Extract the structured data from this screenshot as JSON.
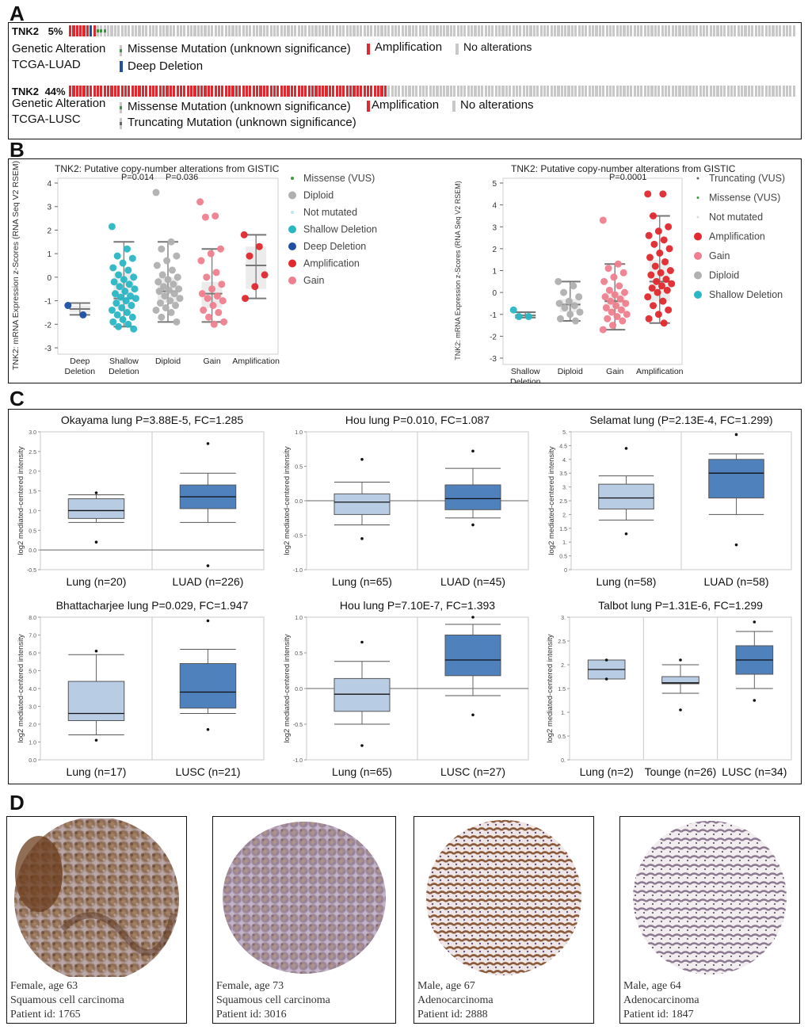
{
  "panels": {
    "a": "A",
    "b": "B",
    "c": "C",
    "d": "D"
  },
  "colors": {
    "amplification": "#e0282e",
    "deep_deletion": "#1f4fa3",
    "missense": "#3a9a3a",
    "truncating": "#666666",
    "no_alteration": "#c8c8c8",
    "box_light": "#b8cce4",
    "box_dark": "#4f81bd",
    "shallow": "#2ab7c4",
    "diploid": "#b0b0b0",
    "gain": "#ef7f8e",
    "deep_del_dot": "#1f4fa3"
  },
  "panel_a": {
    "luad": {
      "gene": "TNK2",
      "pct": "5%",
      "row_label": "Genetic Alteration",
      "study": "TCGA-LUAD",
      "legend": [
        "Missense Mutation (unknown significance)",
        "Amplification",
        "No alterations",
        "Deep Deletion"
      ],
      "altered_fraction": 0.05
    },
    "lusc": {
      "gene": "TNK2",
      "pct": "44%",
      "row_label": "Genetic Alteration",
      "study": "TCGA-LUSC",
      "legend": [
        "Missense Mutation (unknown significance)",
        "Amplification",
        "No alterations",
        "Truncating Mutation (unknown significance)"
      ],
      "altered_fraction": 0.44
    }
  },
  "chart_data": [
    {
      "type": "scatter",
      "panel": "B-left",
      "title": "TNK2: Putative copy-number alterations from GISTIC",
      "ylabel": "TNK2: mRNA Expression z-Scores (RNA Seq V2 RSEM)",
      "categories": [
        "Deep Deletion",
        "Shallow Deletion",
        "Diploid",
        "Gain",
        "Amplification"
      ],
      "ylim": [
        -3,
        4
      ],
      "yticks": [
        -3,
        -2,
        -1,
        0,
        1,
        2,
        3,
        4
      ],
      "pvalues": [
        "P=0.014",
        "P=0.036"
      ],
      "legend": [
        "Missense (VUS)",
        "Diploid",
        "Not mutated",
        "Shallow Deletion",
        "Deep Deletion",
        "Amplification",
        "Gain"
      ],
      "boxes": [
        {
          "q1": -1.5,
          "med": -1.35,
          "q3": -1.2,
          "lo": -1.6,
          "hi": -1.1
        },
        {
          "q1": -1.4,
          "med": -0.9,
          "q3": 0.2,
          "lo": -2.1,
          "hi": 1.5
        },
        {
          "q1": -1.1,
          "med": -0.6,
          "q3": 0.0,
          "lo": -1.9,
          "hi": 1.5
        },
        {
          "q1": -1.3,
          "med": -0.7,
          "q3": -0.2,
          "lo": -1.9,
          "hi": 1.2
        },
        {
          "q1": -0.5,
          "med": 0.5,
          "q3": 1.3,
          "lo": -0.9,
          "hi": 1.8
        }
      ],
      "points": [
        [
          -1.2,
          -1.6
        ],
        [
          2.15,
          1.2,
          0.9,
          0.8,
          0.6,
          0.4,
          0.3,
          0.1,
          0.0,
          -0.1,
          -0.2,
          -0.3,
          -0.4,
          -0.5,
          -0.6,
          -0.7,
          -0.8,
          -0.85,
          -0.9,
          -1.0,
          -1.1,
          -1.2,
          -1.3,
          -1.4,
          -1.5,
          -1.6,
          -1.7,
          -1.8,
          -1.9,
          -2.0,
          -2.1,
          -2.2
        ],
        [
          3.6,
          1.5,
          1.2,
          0.9,
          0.7,
          0.5,
          0.3,
          0.1,
          0.0,
          -0.1,
          -0.2,
          -0.3,
          -0.4,
          -0.5,
          -0.55,
          -0.6,
          -0.7,
          -0.8,
          -0.9,
          -1.0,
          -1.1,
          -1.2,
          -1.3,
          -1.4,
          -1.5,
          -1.7,
          -1.9
        ],
        [
          3.2,
          2.6,
          2.55,
          1.2,
          1.0,
          0.7,
          0.2,
          0.0,
          -0.3,
          -0.5,
          -0.7,
          -0.8,
          -0.9,
          -1.0,
          -1.2,
          -1.4,
          -1.5,
          -1.7,
          -1.9,
          -2.0
        ],
        [
          1.8,
          1.3,
          0.9,
          0.1,
          -0.4,
          -0.9
        ]
      ]
    },
    {
      "type": "scatter",
      "panel": "B-right",
      "title": "TNK2: Putative copy-number alterations from GISTIC",
      "ylabel": "TNK2: mRNA Expression z-Scores (RNA Seq V2 RSEM)",
      "categories": [
        "Shallow Deletion",
        "Diploid",
        "Gain",
        "Amplification"
      ],
      "ylim": [
        -3,
        5
      ],
      "yticks": [
        -3,
        -2,
        -1,
        0,
        1,
        2,
        3,
        4,
        5
      ],
      "pvalues": [
        "P=0.0001"
      ],
      "legend": [
        "Truncating (VUS)",
        "Missense (VUS)",
        "Not mutated",
        "Amplification",
        "Gain",
        "Diploid",
        "Shallow Deletion"
      ],
      "boxes": [
        {
          "q1": -1.15,
          "med": -1.05,
          "q3": -0.95,
          "lo": -1.15,
          "hi": -0.9
        },
        {
          "q1": -0.9,
          "med": -0.55,
          "q3": -0.3,
          "lo": -1.3,
          "hi": 0.5
        },
        {
          "q1": -0.9,
          "med": -0.4,
          "q3": 0.0,
          "lo": -1.7,
          "hi": 1.3
        },
        {
          "q1": -0.4,
          "med": 0.5,
          "q3": 1.5,
          "lo": -1.4,
          "hi": 3.5
        }
      ],
      "points": [
        [
          -0.8,
          -1.1,
          -1.1
        ],
        [
          0.5,
          0.3,
          0.0,
          -0.2,
          -0.4,
          -0.5,
          -0.6,
          -0.7,
          -0.9,
          -1.0,
          -1.2,
          -1.3
        ],
        [
          3.3,
          1.3,
          1.1,
          0.9,
          0.7,
          0.5,
          0.3,
          0.1,
          0.0,
          -0.1,
          -0.2,
          -0.3,
          -0.4,
          -0.5,
          -0.6,
          -0.7,
          -0.8,
          -0.9,
          -1.0,
          -1.1,
          -1.2,
          -1.3,
          -1.5,
          -1.7
        ],
        [
          4.5,
          4.5,
          3.5,
          3.0,
          2.8,
          2.6,
          2.4,
          2.2,
          2.0,
          1.8,
          1.6,
          1.4,
          1.2,
          1.0,
          0.9,
          0.8,
          0.6,
          0.5,
          0.4,
          0.3,
          0.2,
          0.1,
          0.0,
          -0.2,
          -0.4,
          -0.6,
          -0.8,
          -1.0,
          -1.2,
          -1.4
        ]
      ]
    },
    {
      "type": "box",
      "panel": "C-1",
      "title": "Okayama lung P=3.88E-5, FC=1.285",
      "ylabel": "log2 mediated-centered intensity",
      "categories": [
        "Lung (n=20)",
        "LUAD (n=226)"
      ],
      "ylim": [
        -0.5,
        3.0
      ],
      "yticks": [
        "-0.5",
        "0.0",
        "0.5",
        "1.0",
        "1.5",
        "2.0",
        "2.5",
        "3.0"
      ],
      "ref": 0.0,
      "boxes": [
        {
          "q1": 0.8,
          "med": 1.0,
          "q3": 1.3,
          "lo": 0.7,
          "hi": 1.4,
          "out": [
            1.45,
            0.2
          ]
        },
        {
          "q1": 1.05,
          "med": 1.35,
          "q3": 1.65,
          "lo": 0.7,
          "hi": 1.95,
          "out": [
            2.7,
            -0.4
          ]
        }
      ]
    },
    {
      "type": "box",
      "panel": "C-2",
      "title": "Hou lung P=0.010, FC=1.087",
      "ylabel": "log2 mediated-centered intensity",
      "categories": [
        "Lung (n=65)",
        "LUAD (n=45)"
      ],
      "ylim": [
        -1.0,
        1.0
      ],
      "yticks": [
        "-1.0",
        "-0.5",
        "0.0",
        "0.5",
        "1.0"
      ],
      "ref": 0.0,
      "boxes": [
        {
          "q1": -0.2,
          "med": -0.02,
          "q3": 0.1,
          "lo": -0.35,
          "hi": 0.27,
          "out": [
            0.6,
            -0.55
          ]
        },
        {
          "q1": -0.13,
          "med": 0.03,
          "q3": 0.23,
          "lo": -0.25,
          "hi": 0.47,
          "out": [
            0.72,
            -0.35
          ]
        }
      ]
    },
    {
      "type": "box",
      "panel": "C-3",
      "title": "Selamat lung (P=2.13E-4, FC=1.299)",
      "ylabel": "log2 mediated-centered intensity",
      "categories": [
        "Lung (n=58)",
        "LUAD (n=58)"
      ],
      "ylim": [
        0,
        5
      ],
      "yticks": [
        "0",
        "0.5",
        "1.",
        "1.5",
        "2.",
        "2.5",
        "3.",
        "3.5",
        "4.",
        "4.5",
        "5."
      ],
      "ref": null,
      "boxes": [
        {
          "q1": 2.2,
          "med": 2.6,
          "q3": 3.1,
          "lo": 1.8,
          "hi": 3.4,
          "out": [
            4.4,
            1.3
          ]
        },
        {
          "q1": 2.6,
          "med": 3.5,
          "q3": 4.0,
          "lo": 2.0,
          "hi": 4.2,
          "out": [
            4.9,
            0.9
          ]
        }
      ]
    },
    {
      "type": "box",
      "panel": "C-4",
      "title": "Bhattacharjee lung P=0.029, FC=1.947",
      "ylabel": "log2 mediated-centered intensity",
      "categories": [
        "Lung (n=17)",
        "LUSC (n=21)"
      ],
      "ylim": [
        0,
        8
      ],
      "yticks": [
        "0.0",
        "1.0",
        "2.0",
        "3.0",
        "4.0",
        "5.0",
        "6.0",
        "7.0",
        "8.0"
      ],
      "ref": null,
      "boxes": [
        {
          "q1": 2.2,
          "med": 2.6,
          "q3": 4.4,
          "lo": 1.4,
          "hi": 5.9,
          "out": [
            6.1,
            1.1
          ]
        },
        {
          "q1": 2.9,
          "med": 3.8,
          "q3": 5.4,
          "lo": 2.6,
          "hi": 6.2,
          "out": [
            7.8,
            1.7
          ]
        }
      ]
    },
    {
      "type": "box",
      "panel": "C-5",
      "title": "Hou lung P=7.10E-7, FC=1.393",
      "ylabel": "log2 mediated-centered intensity",
      "categories": [
        "Lung (n=65)",
        "LUSC (n=27)"
      ],
      "ylim": [
        -1.0,
        1.0
      ],
      "yticks": [
        "-1.0",
        "-0.5",
        "0.0",
        "0.5",
        "1.0"
      ],
      "ref": 0.0,
      "boxes": [
        {
          "q1": -0.32,
          "med": -0.08,
          "q3": 0.14,
          "lo": -0.5,
          "hi": 0.38,
          "out": [
            0.65,
            -0.8
          ]
        },
        {
          "q1": 0.18,
          "med": 0.4,
          "q3": 0.75,
          "lo": -0.1,
          "hi": 0.9,
          "out": [
            1.0,
            -0.37
          ]
        }
      ]
    },
    {
      "type": "box",
      "panel": "C-6",
      "title": "Talbot lung P=1.31E-6, FC=1.299",
      "ylabel": "log2 mediated-centered intensity",
      "categories": [
        "Lung (n=2)",
        "Tounge (n=26)",
        "LUSC (n=34)"
      ],
      "ylim": [
        0,
        3
      ],
      "yticks": [
        "0.",
        "0.5",
        "1.",
        "1.5",
        "2.",
        "2.5",
        "3."
      ],
      "ref": null,
      "boxes": [
        {
          "q1": 1.7,
          "med": 1.9,
          "q3": 2.1,
          "lo": 1.7,
          "hi": 2.1,
          "out": [
            2.1,
            1.7
          ]
        },
        {
          "q1": 1.6,
          "med": 1.62,
          "q3": 1.75,
          "lo": 1.4,
          "hi": 2.0,
          "out": [
            2.1,
            1.05
          ]
        },
        {
          "q1": 1.8,
          "med": 2.1,
          "q3": 2.4,
          "lo": 1.5,
          "hi": 2.7,
          "out": [
            2.9,
            1.25
          ]
        }
      ]
    }
  ],
  "panel_d": [
    {
      "line1": "Female, age 63",
      "line2": "Squamous cell carcinoma",
      "line3": "Patient id: 1765",
      "stain": "squamous-dark"
    },
    {
      "line1": "Female, age 73",
      "line2": "Squamous cell carcinoma",
      "line3": "Patient id: 3016",
      "stain": "squamous-medium"
    },
    {
      "line1": "Male, age 67",
      "line2": "Adenocarcinoma",
      "line3": "Patient id: 2888",
      "stain": "adeno-dark"
    },
    {
      "line1": "Male, age 64",
      "line2": "Adenocarcinoma",
      "line3": "Patient id: 1847",
      "stain": "adeno-light"
    }
  ]
}
